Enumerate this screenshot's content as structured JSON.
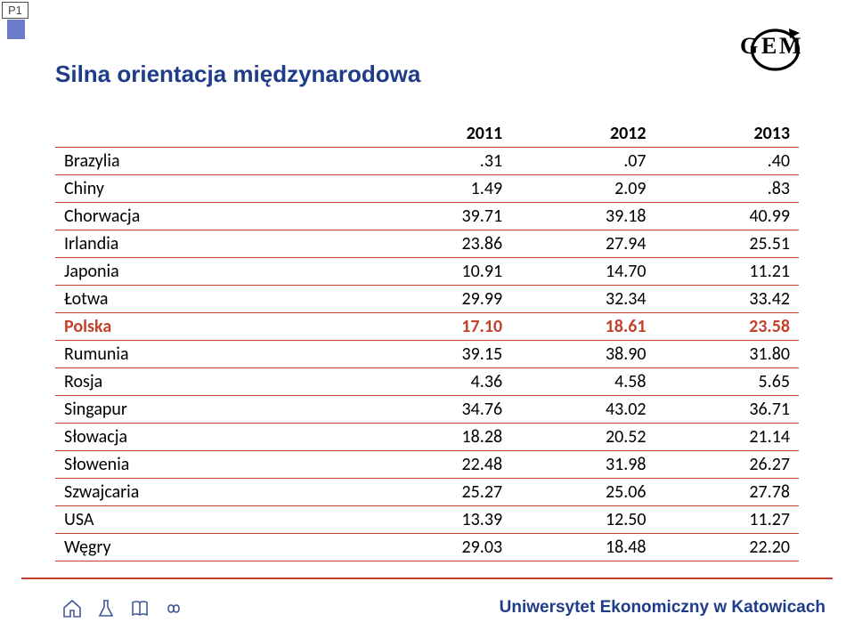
{
  "tag_label": "P1",
  "title": "Silna orientacja międzynarodowa",
  "logo": {
    "text": "GEM"
  },
  "columns": [
    "",
    "2011",
    "2012",
    "2013"
  ],
  "highlight_row_index": 5,
  "row_color": "#000000",
  "highlight_color": "#c2412d",
  "border_color": "#c2412d",
  "rows": [
    {
      "label": "Brazylia",
      "v": [
        ".31",
        ".07",
        ".40"
      ]
    },
    {
      "label": "Chiny",
      "v": [
        "1.49",
        "2.09",
        ".83"
      ]
    },
    {
      "label": "Chorwacja",
      "v": [
        "39.71",
        "39.18",
        "40.99"
      ]
    },
    {
      "label": "Irlandia",
      "v": [
        "23.86",
        "27.94",
        "25.51"
      ]
    },
    {
      "label": "Japonia",
      "v": [
        "10.91",
        "14.70",
        "11.21"
      ]
    },
    {
      "label": "Łotwa",
      "v": [
        "29.99",
        "32.34",
        "33.42"
      ]
    },
    {
      "label": "Polska",
      "v": [
        "17.10",
        "18.61",
        "23.58"
      ]
    },
    {
      "label": "Rumunia",
      "v": [
        "39.15",
        "38.90",
        "31.80"
      ]
    },
    {
      "label": "Rosja",
      "v": [
        "4.36",
        "4.58",
        "5.65"
      ]
    },
    {
      "label": "Singapur",
      "v": [
        "34.76",
        "43.02",
        "36.71"
      ]
    },
    {
      "label": "Słowacja",
      "v": [
        "18.28",
        "20.52",
        "21.14"
      ]
    },
    {
      "label": "Słowenia",
      "v": [
        "22.48",
        "31.98",
        "26.27"
      ]
    },
    {
      "label": "Szwajcaria",
      "v": [
        "25.27",
        "25.06",
        "27.78"
      ]
    },
    {
      "label": "USA",
      "v": [
        "13.39",
        "12.50",
        "11.27"
      ]
    },
    {
      "label": "Węgry",
      "v": [
        "29.03",
        "18.48",
        "22.20"
      ]
    }
  ],
  "footer": {
    "text": "Uniwersytet Ekonomiczny w Katowicach",
    "icons": [
      "home-icon",
      "flask-icon",
      "book-icon",
      "infinity-icon"
    ]
  }
}
